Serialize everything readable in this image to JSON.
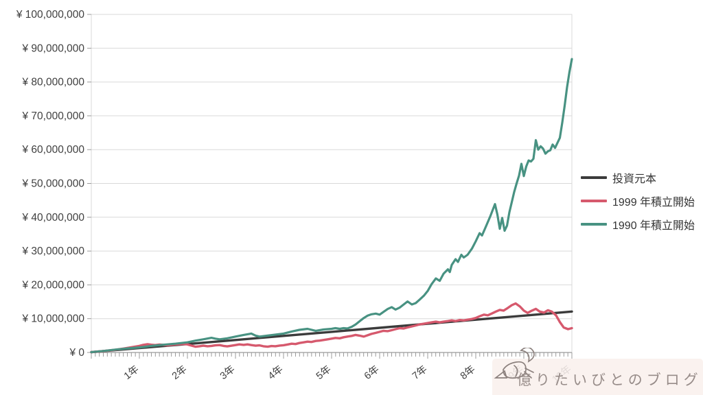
{
  "watermark": {
    "text": "億りたいびとのブログ",
    "icon": "bird-doodle-icon"
  },
  "style": {
    "background": "#ffffff",
    "grid_color": "#d9d9d9",
    "axis_color": "#9b9b9b",
    "tick_label_color": "#3f3f3f",
    "watermark_bg": "#f9f0ed",
    "watermark_text_color": "#978c89"
  },
  "chart_data": {
    "type": "line",
    "title": "",
    "xlabel": "",
    "ylabel": "",
    "grid": "horizontal",
    "legend_position": "right",
    "x_unit_years": [
      0,
      10
    ],
    "minor_ticks": "monthly",
    "ylim_yen": [
      0,
      100000000
    ],
    "y_tick_step_yen": 10000000,
    "y_tick_labels": [
      "¥ 0",
      "¥ 10,000,000",
      "¥ 20,000,000",
      "¥ 30,000,000",
      "¥ 40,000,000",
      "¥ 50,000,000",
      "¥ 60,000,000",
      "¥ 70,000,000",
      "¥ 80,000,000",
      "¥ 90,000,000",
      "¥ 100,000,000"
    ],
    "x_tick_labels": [
      "1年",
      "2年",
      "3年",
      "4年",
      "5年",
      "6年",
      "7年",
      "8年",
      "9年",
      "10年"
    ],
    "value_unit": "million_yen",
    "series": [
      {
        "name": "投資元本",
        "color": "#3b3b3b",
        "width": 3.4,
        "points": [
          [
            0,
            0.1
          ],
          [
            1,
            1.3
          ],
          [
            2,
            2.5
          ],
          [
            3,
            3.7
          ],
          [
            4,
            4.9
          ],
          [
            5,
            6.1
          ],
          [
            6,
            7.3
          ],
          [
            7,
            8.5
          ],
          [
            8,
            9.7
          ],
          [
            9,
            10.9
          ],
          [
            10,
            12.1
          ]
        ]
      },
      {
        "name": "1999 年積立開始",
        "color": "#d6596d",
        "width": 3.4,
        "points": [
          [
            0,
            0.1
          ],
          [
            0.17,
            0.3
          ],
          [
            0.33,
            0.55
          ],
          [
            0.5,
            0.8
          ],
          [
            0.67,
            1.15
          ],
          [
            0.83,
            1.55
          ],
          [
            1,
            1.95
          ],
          [
            1.08,
            2.25
          ],
          [
            1.17,
            2.45
          ],
          [
            1.25,
            2.3
          ],
          [
            1.33,
            2.2
          ],
          [
            1.42,
            2.35
          ],
          [
            1.5,
            2.25
          ],
          [
            1.58,
            2.1
          ],
          [
            1.67,
            2.25
          ],
          [
            1.75,
            2.35
          ],
          [
            1.83,
            2.45
          ],
          [
            1.92,
            2.5
          ],
          [
            2,
            2.4
          ],
          [
            2.08,
            2.05
          ],
          [
            2.17,
            1.7
          ],
          [
            2.25,
            1.85
          ],
          [
            2.33,
            2.0
          ],
          [
            2.42,
            1.85
          ],
          [
            2.5,
            1.95
          ],
          [
            2.58,
            2.1
          ],
          [
            2.67,
            2.2
          ],
          [
            2.75,
            1.95
          ],
          [
            2.83,
            1.8
          ],
          [
            2.92,
            2.0
          ],
          [
            3,
            2.2
          ],
          [
            3.08,
            2.4
          ],
          [
            3.17,
            2.25
          ],
          [
            3.25,
            2.4
          ],
          [
            3.33,
            2.2
          ],
          [
            3.42,
            2.0
          ],
          [
            3.5,
            2.1
          ],
          [
            3.58,
            1.85
          ],
          [
            3.67,
            1.7
          ],
          [
            3.75,
            1.9
          ],
          [
            3.83,
            1.85
          ],
          [
            3.92,
            2.05
          ],
          [
            4,
            2.15
          ],
          [
            4.08,
            2.35
          ],
          [
            4.17,
            2.6
          ],
          [
            4.25,
            2.5
          ],
          [
            4.33,
            2.8
          ],
          [
            4.42,
            3.0
          ],
          [
            4.5,
            3.2
          ],
          [
            4.58,
            3.1
          ],
          [
            4.67,
            3.4
          ],
          [
            4.75,
            3.5
          ],
          [
            4.83,
            3.7
          ],
          [
            4.92,
            3.9
          ],
          [
            5,
            4.1
          ],
          [
            5.08,
            4.3
          ],
          [
            5.17,
            4.2
          ],
          [
            5.25,
            4.5
          ],
          [
            5.33,
            4.7
          ],
          [
            5.42,
            4.9
          ],
          [
            5.5,
            5.2
          ],
          [
            5.58,
            5.0
          ],
          [
            5.67,
            4.7
          ],
          [
            5.75,
            5.1
          ],
          [
            5.83,
            5.5
          ],
          [
            5.92,
            5.8
          ],
          [
            6,
            6.1
          ],
          [
            6.08,
            6.4
          ],
          [
            6.17,
            6.3
          ],
          [
            6.25,
            6.6
          ],
          [
            6.33,
            6.9
          ],
          [
            6.42,
            7.2
          ],
          [
            6.5,
            7.1
          ],
          [
            6.58,
            7.4
          ],
          [
            6.67,
            7.7
          ],
          [
            6.75,
            8.0
          ],
          [
            6.83,
            8.3
          ],
          [
            6.92,
            8.5
          ],
          [
            7,
            8.7
          ],
          [
            7.08,
            8.9
          ],
          [
            7.17,
            9.1
          ],
          [
            7.25,
            8.9
          ],
          [
            7.33,
            9.1
          ],
          [
            7.42,
            9.3
          ],
          [
            7.5,
            9.5
          ],
          [
            7.58,
            9.3
          ],
          [
            7.67,
            9.6
          ],
          [
            7.75,
            9.5
          ],
          [
            7.83,
            9.7
          ],
          [
            7.92,
            9.9
          ],
          [
            8,
            10.2
          ],
          [
            8.08,
            10.7
          ],
          [
            8.17,
            11.2
          ],
          [
            8.25,
            11.0
          ],
          [
            8.33,
            11.5
          ],
          [
            8.42,
            12.1
          ],
          [
            8.5,
            12.6
          ],
          [
            8.58,
            12.4
          ],
          [
            8.67,
            13.2
          ],
          [
            8.75,
            14.0
          ],
          [
            8.83,
            14.5
          ],
          [
            8.92,
            13.6
          ],
          [
            9,
            12.4
          ],
          [
            9.08,
            11.7
          ],
          [
            9.17,
            12.4
          ],
          [
            9.25,
            12.9
          ],
          [
            9.33,
            12.1
          ],
          [
            9.42,
            11.8
          ],
          [
            9.5,
            12.5
          ],
          [
            9.58,
            12.1
          ],
          [
            9.67,
            11.0
          ],
          [
            9.75,
            9.0
          ],
          [
            9.83,
            7.4
          ],
          [
            9.92,
            6.9
          ],
          [
            10,
            7.2
          ]
        ]
      },
      {
        "name": "1990 年積立開始",
        "color": "#489282",
        "width": 3.2,
        "points": [
          [
            0,
            0.1
          ],
          [
            0.25,
            0.45
          ],
          [
            0.5,
            0.85
          ],
          [
            0.75,
            1.2
          ],
          [
            1,
            1.5
          ],
          [
            1.25,
            1.95
          ],
          [
            1.5,
            2.3
          ],
          [
            1.75,
            2.6
          ],
          [
            2,
            3.0
          ],
          [
            2.17,
            3.5
          ],
          [
            2.33,
            3.9
          ],
          [
            2.5,
            4.35
          ],
          [
            2.58,
            4.1
          ],
          [
            2.67,
            3.9
          ],
          [
            2.83,
            4.2
          ],
          [
            3,
            4.7
          ],
          [
            3.17,
            5.2
          ],
          [
            3.33,
            5.6
          ],
          [
            3.42,
            5.0
          ],
          [
            3.5,
            4.7
          ],
          [
            3.67,
            5.0
          ],
          [
            3.83,
            5.3
          ],
          [
            4,
            5.6
          ],
          [
            4.17,
            6.2
          ],
          [
            4.33,
            6.7
          ],
          [
            4.5,
            7.0
          ],
          [
            4.67,
            6.4
          ],
          [
            4.83,
            6.8
          ],
          [
            5,
            7.0
          ],
          [
            5.08,
            7.2
          ],
          [
            5.17,
            7.0
          ],
          [
            5.25,
            7.2
          ],
          [
            5.33,
            7.1
          ],
          [
            5.42,
            7.6
          ],
          [
            5.5,
            8.3
          ],
          [
            5.58,
            9.2
          ],
          [
            5.67,
            10.2
          ],
          [
            5.75,
            10.9
          ],
          [
            5.83,
            11.3
          ],
          [
            5.92,
            11.5
          ],
          [
            6,
            11.2
          ],
          [
            6.08,
            12.0
          ],
          [
            6.17,
            12.9
          ],
          [
            6.25,
            13.4
          ],
          [
            6.33,
            12.7
          ],
          [
            6.42,
            13.3
          ],
          [
            6.5,
            14.2
          ],
          [
            6.58,
            15.1
          ],
          [
            6.67,
            14.2
          ],
          [
            6.75,
            14.6
          ],
          [
            6.83,
            15.6
          ],
          [
            6.92,
            16.8
          ],
          [
            7,
            18.2
          ],
          [
            7.08,
            20.2
          ],
          [
            7.17,
            21.9
          ],
          [
            7.25,
            21.2
          ],
          [
            7.33,
            23.3
          ],
          [
            7.42,
            24.6
          ],
          [
            7.46,
            23.8
          ],
          [
            7.5,
            25.9
          ],
          [
            7.58,
            27.6
          ],
          [
            7.63,
            26.8
          ],
          [
            7.7,
            28.9
          ],
          [
            7.75,
            28.1
          ],
          [
            7.83,
            28.9
          ],
          [
            7.92,
            30.7
          ],
          [
            8,
            32.9
          ],
          [
            8.08,
            35.3
          ],
          [
            8.13,
            34.6
          ],
          [
            8.2,
            36.9
          ],
          [
            8.3,
            40.2
          ],
          [
            8.4,
            43.9
          ],
          [
            8.45,
            40.8
          ],
          [
            8.5,
            36.6
          ],
          [
            8.55,
            39.8
          ],
          [
            8.6,
            36.0
          ],
          [
            8.65,
            37.5
          ],
          [
            8.7,
            41.5
          ],
          [
            8.75,
            44.5
          ],
          [
            8.8,
            47.5
          ],
          [
            8.85,
            50.0
          ],
          [
            8.9,
            52.3
          ],
          [
            8.95,
            55.8
          ],
          [
            9,
            52.2
          ],
          [
            9.05,
            55.0
          ],
          [
            9.1,
            56.8
          ],
          [
            9.15,
            56.5
          ],
          [
            9.2,
            57.3
          ],
          [
            9.25,
            62.8
          ],
          [
            9.3,
            60.0
          ],
          [
            9.35,
            61.0
          ],
          [
            9.4,
            60.3
          ],
          [
            9.45,
            58.8
          ],
          [
            9.5,
            59.5
          ],
          [
            9.55,
            59.8
          ],
          [
            9.6,
            61.5
          ],
          [
            9.65,
            60.5
          ],
          [
            9.7,
            62.0
          ],
          [
            9.75,
            63.5
          ],
          [
            9.8,
            68.0
          ],
          [
            9.85,
            73.0
          ],
          [
            9.9,
            78.5
          ],
          [
            9.95,
            83.0
          ],
          [
            10,
            86.8
          ]
        ]
      }
    ]
  }
}
